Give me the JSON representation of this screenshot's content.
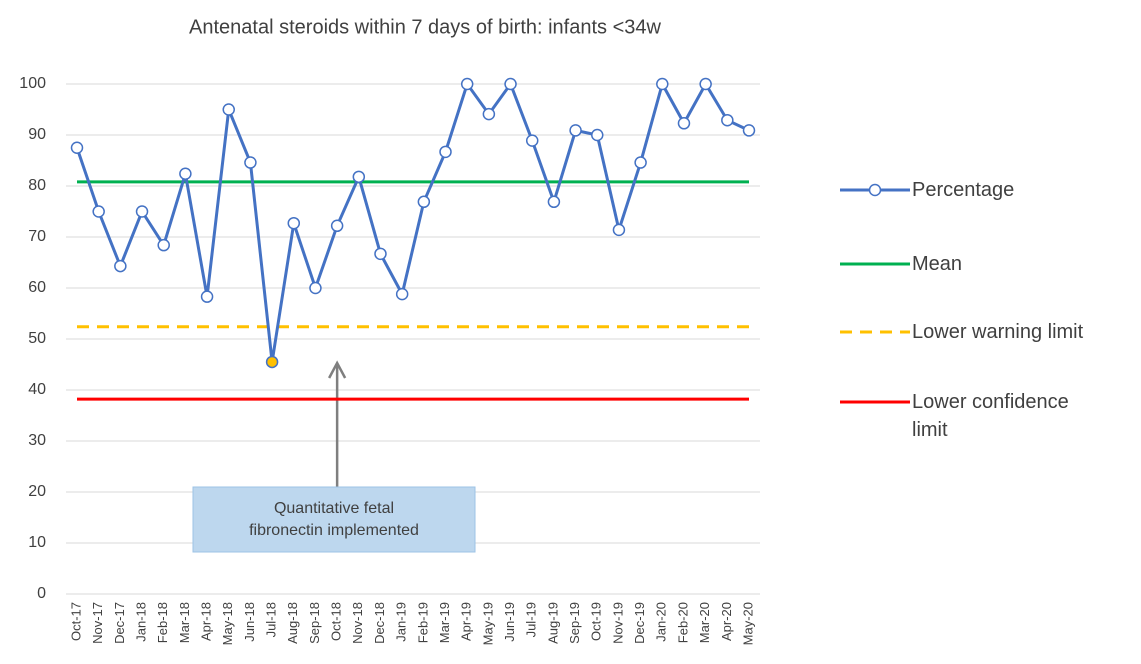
{
  "chart_data": {
    "type": "line",
    "title": "Antenatal steroids within 7 days of birth: infants <34w",
    "categories": [
      "Oct-17",
      "Nov-17",
      "Dec-17",
      "Jan-18",
      "Feb-18",
      "Mar-18",
      "Apr-18",
      "May-18",
      "Jun-18",
      "Jul-18",
      "Aug-18",
      "Sep-18",
      "Oct-18",
      "Nov-18",
      "Dec-18",
      "Jan-19",
      "Feb-19",
      "Mar-19",
      "Apr-19",
      "May-19",
      "Jun-19",
      "Jul-19",
      "Aug-19",
      "Sep-19",
      "Oct-19",
      "Nov-19",
      "Dec-19",
      "Jan-20",
      "Feb-20",
      "Mar-20",
      "Apr-20",
      "May-20"
    ],
    "series": [
      {
        "name": "Percentage",
        "color": "#4472c4",
        "markers": true,
        "values": [
          87.5,
          75,
          64.3,
          75,
          68.4,
          82.4,
          58.3,
          95,
          84.6,
          45.5,
          72.7,
          60,
          72.2,
          81.8,
          66.7,
          58.8,
          76.9,
          86.7,
          100,
          94.1,
          100,
          88.9,
          76.9,
          90.9,
          90,
          71.4,
          84.6,
          100,
          92.3,
          100,
          92.9,
          90.9
        ]
      },
      {
        "name": "Mean",
        "color": "#00b050",
        "values": [
          80.8,
          80.8,
          80.8,
          80.8,
          80.8,
          80.8,
          80.8,
          80.8,
          80.8,
          80.8,
          80.8,
          80.8,
          80.8,
          80.8,
          80.8,
          80.8,
          80.8,
          80.8,
          80.8,
          80.8,
          80.8,
          80.8,
          80.8,
          80.8,
          80.8,
          80.8,
          80.8,
          80.8,
          80.8,
          80.8,
          80.8,
          80.8
        ]
      },
      {
        "name": "Lower warning limit",
        "color": "#ffc000",
        "dashed": true,
        "values": [
          52.4,
          52.4,
          52.4,
          52.4,
          52.4,
          52.4,
          52.4,
          52.4,
          52.4,
          52.4,
          52.4,
          52.4,
          52.4,
          52.4,
          52.4,
          52.4,
          52.4,
          52.4,
          52.4,
          52.4,
          52.4,
          52.4,
          52.4,
          52.4,
          52.4,
          52.4,
          52.4,
          52.4,
          52.4,
          52.4,
          52.4,
          52.4
        ]
      },
      {
        "name": "Lower confidence limit",
        "color": "#ff0000",
        "values": [
          38.2,
          38.2,
          38.2,
          38.2,
          38.2,
          38.2,
          38.2,
          38.2,
          38.2,
          38.2,
          38.2,
          38.2,
          38.2,
          38.2,
          38.2,
          38.2,
          38.2,
          38.2,
          38.2,
          38.2,
          38.2,
          38.2,
          38.2,
          38.2,
          38.2,
          38.2,
          38.2,
          38.2,
          38.2,
          38.2,
          38.2,
          38.2
        ]
      }
    ],
    "highlight_point": {
      "index": 9,
      "color": "#ffc000"
    },
    "annotation": {
      "lines": [
        "Quantitative fetal",
        "fibronectin implemented"
      ],
      "category_index": 12
    },
    "ylim": [
      0,
      100
    ],
    "yticks": [
      0,
      10,
      20,
      30,
      40,
      50,
      60,
      70,
      80,
      90,
      100
    ],
    "grid": true,
    "legend": "right"
  }
}
